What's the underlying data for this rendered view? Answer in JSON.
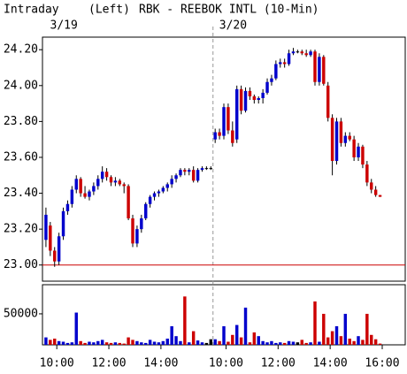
{
  "chart_data": {
    "type": "candlestick",
    "title": "RBK - REEBOK INTL (10-Min)",
    "period": "Intraday",
    "side": "(Left)",
    "up_color": "#0000cc",
    "down_color": "#cc0000",
    "flat_color": "#000000",
    "ref_line": 23.0,
    "ref_color": "#cc0000",
    "xlim": [
      -0.3,
      83.3
    ],
    "xticks": [
      {
        "value": 3,
        "label": "10:00"
      },
      {
        "value": 15,
        "label": "12:00"
      },
      {
        "value": 27,
        "label": "14:00"
      },
      {
        "value": 42,
        "label": "10:00"
      },
      {
        "value": 54,
        "label": "12:00"
      },
      {
        "value": 66,
        "label": "14:00"
      },
      {
        "value": 78,
        "label": "16:00"
      }
    ],
    "dates": [
      {
        "value": 3,
        "label": "3/19"
      },
      {
        "value": 42,
        "label": "3/20"
      }
    ],
    "day_break": 39,
    "ylim": [
      22.91,
      24.27
    ],
    "yticks": [
      {
        "value": 23.0,
        "label": "23.00"
      },
      {
        "value": 23.2,
        "label": "23.20"
      },
      {
        "value": 23.4,
        "label": "23.40"
      },
      {
        "value": 23.6,
        "label": "23.60"
      },
      {
        "value": 23.8,
        "label": "23.80"
      },
      {
        "value": 24.0,
        "label": "24.00"
      },
      {
        "value": 24.2,
        "label": "24.20"
      }
    ],
    "volume_ylim": [
      0,
      97000
    ],
    "volume_yticks": [
      50000
    ],
    "open": [
      23.14,
      23.22,
      23.08,
      23.02,
      23.16,
      23.3,
      23.34,
      23.42,
      23.48,
      23.4,
      23.38,
      23.41,
      23.44,
      23.48,
      23.52,
      23.49,
      23.46,
      23.47,
      23.45,
      23.44,
      23.26,
      23.12,
      23.2,
      23.26,
      23.34,
      23.38,
      23.4,
      23.41,
      23.43,
      23.45,
      23.48,
      23.5,
      23.53,
      23.52,
      23.53,
      23.47,
      23.53,
      23.54,
      23.54,
      23.7,
      23.74,
      23.72,
      23.88,
      23.75,
      23.7,
      23.98,
      23.86,
      23.97,
      23.94,
      23.92,
      23.93,
      23.96,
      24.02,
      24.04,
      24.12,
      24.13,
      24.12,
      24.18,
      24.19,
      24.19,
      24.18,
      24.17,
      24.19,
      24.02,
      24.16,
      24.0,
      23.82,
      23.58,
      23.8,
      23.68,
      23.72,
      23.7,
      23.6,
      23.66,
      23.56,
      23.46,
      23.42,
      23.39
    ],
    "high": [
      23.32,
      23.24,
      23.1,
      23.18,
      23.32,
      23.36,
      23.44,
      23.5,
      23.49,
      23.44,
      23.42,
      23.46,
      23.5,
      23.55,
      23.54,
      23.5,
      23.49,
      23.48,
      23.46,
      23.45,
      23.28,
      23.22,
      23.28,
      23.35,
      23.39,
      23.41,
      23.42,
      23.44,
      23.46,
      23.5,
      23.51,
      23.54,
      23.54,
      23.54,
      23.55,
      23.54,
      23.55,
      23.55,
      23.55,
      23.76,
      23.76,
      23.9,
      23.9,
      23.8,
      24.0,
      24.0,
      23.99,
      23.99,
      23.95,
      23.94,
      23.98,
      24.04,
      24.06,
      24.14,
      24.15,
      24.15,
      24.2,
      24.21,
      24.2,
      24.2,
      24.2,
      24.2,
      24.2,
      24.18,
      24.17,
      24.02,
      23.84,
      23.82,
      23.82,
      23.74,
      23.74,
      23.72,
      23.68,
      23.67,
      23.58,
      23.48,
      23.44,
      23.39
    ],
    "low": [
      23.1,
      23.05,
      22.99,
      23.0,
      23.14,
      23.28,
      23.32,
      23.4,
      23.38,
      23.37,
      23.36,
      23.39,
      23.42,
      23.46,
      23.47,
      23.44,
      23.44,
      23.44,
      23.4,
      23.25,
      23.1,
      23.1,
      23.18,
      23.25,
      23.32,
      23.36,
      23.38,
      23.4,
      23.41,
      23.43,
      23.46,
      23.49,
      23.5,
      23.5,
      23.46,
      23.46,
      23.52,
      23.53,
      23.53,
      23.68,
      23.7,
      23.7,
      23.73,
      23.66,
      23.68,
      23.84,
      23.85,
      23.92,
      23.9,
      23.9,
      23.9,
      23.95,
      24.0,
      24.03,
      24.1,
      24.1,
      24.11,
      24.17,
      24.18,
      24.17,
      24.16,
      24.16,
      24.0,
      24.0,
      24.0,
      23.8,
      23.5,
      23.56,
      23.66,
      23.66,
      23.69,
      23.58,
      23.58,
      23.54,
      23.44,
      23.4,
      23.38,
      23.38
    ],
    "close": [
      23.28,
      23.08,
      23.02,
      23.16,
      23.3,
      23.34,
      23.42,
      23.48,
      23.4,
      23.38,
      23.41,
      23.44,
      23.48,
      23.52,
      23.49,
      23.46,
      23.47,
      23.45,
      23.44,
      23.26,
      23.12,
      23.2,
      23.26,
      23.34,
      23.38,
      23.4,
      23.41,
      23.43,
      23.45,
      23.48,
      23.5,
      23.53,
      23.52,
      23.53,
      23.47,
      23.53,
      23.54,
      23.54,
      23.54,
      23.74,
      23.72,
      23.88,
      23.75,
      23.68,
      23.98,
      23.86,
      23.97,
      23.94,
      23.92,
      23.93,
      23.96,
      24.02,
      24.04,
      24.12,
      24.13,
      24.12,
      24.18,
      24.19,
      24.19,
      24.18,
      24.17,
      24.19,
      24.02,
      24.16,
      24.01,
      23.82,
      23.58,
      23.8,
      23.68,
      23.72,
      23.7,
      23.6,
      23.66,
      23.56,
      23.46,
      23.42,
      23.39,
      23.38
    ],
    "volume": [
      12000,
      8000,
      10000,
      6000,
      5000,
      3000,
      4000,
      52000,
      6000,
      3000,
      5000,
      4000,
      6000,
      8000,
      4000,
      3000,
      4000,
      3000,
      2000,
      12000,
      8000,
      6000,
      4000,
      3000,
      8000,
      5000,
      4000,
      6000,
      10000,
      30000,
      14000,
      6000,
      78000,
      4000,
      22000,
      7000,
      4000,
      3000,
      9000,
      9000,
      6000,
      30000,
      5000,
      16000,
      32000,
      12000,
      60000,
      4000,
      20000,
      14000,
      6000,
      4000,
      6000,
      3000,
      4000,
      3000,
      6000,
      5000,
      4000,
      8000,
      3000,
      4000,
      70000,
      5000,
      50000,
      12000,
      22000,
      30000,
      14000,
      50000,
      10000,
      6000,
      14000,
      8000,
      50000,
      16000,
      9000,
      2000
    ]
  }
}
